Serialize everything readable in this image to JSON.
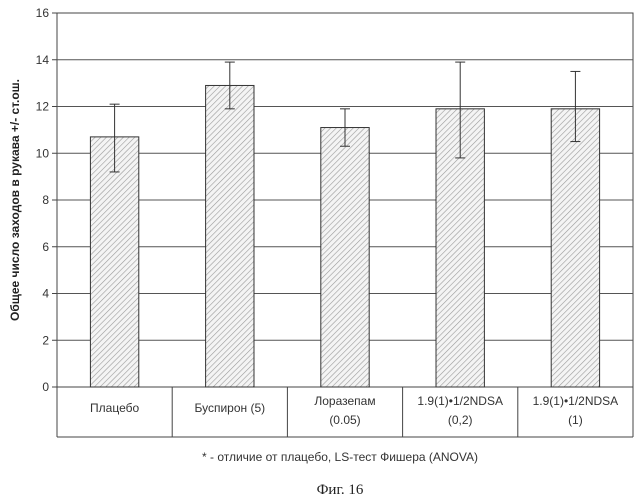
{
  "chart_data": {
    "type": "bar",
    "categories": [
      [
        "Плацебо"
      ],
      [
        "Буспирон (5)"
      ],
      [
        "Лоразепам",
        "(0.05)"
      ],
      [
        "1.9(1)•1/2NDSA",
        "(0,2)"
      ],
      [
        "1.9(1)•1/2NDSA",
        "(1)"
      ]
    ],
    "values": [
      10.7,
      12.9,
      11.1,
      11.9,
      11.9
    ],
    "errors": [
      {
        "low": 9.2,
        "high": 12.1
      },
      {
        "low": 11.9,
        "high": 13.9
      },
      {
        "low": 10.3,
        "high": 11.9
      },
      {
        "low": 9.8,
        "high": 13.9
      },
      {
        "low": 10.5,
        "high": 13.5
      }
    ],
    "ylabel": "Общее число заходов в рукава +/- ст.ош.",
    "ylim": [
      0,
      16
    ],
    "yticks": [
      0,
      2,
      4,
      6,
      8,
      10,
      12,
      14,
      16
    ],
    "grid": true,
    "bar_pattern": "diagonal-hatch",
    "footnote": "* - отличие от плацебо, LS-тест Фишера (ANOVA)",
    "figure_caption": "Фиг. 16"
  }
}
